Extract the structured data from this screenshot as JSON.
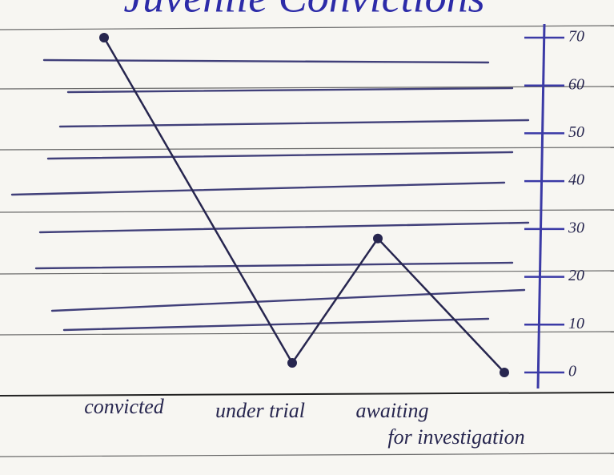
{
  "chart_data": {
    "type": "line",
    "title": "Juvenile Convictions",
    "categories": [
      "convicted",
      "under trial",
      "awaiting",
      "for investigation"
    ],
    "values": [
      70,
      2,
      28,
      0
    ],
    "color": "#27264f",
    "axis_color": "#3b3aa6",
    "ylim": [
      0,
      70
    ],
    "yticks": [
      0,
      10,
      20,
      30,
      40,
      50,
      60,
      70
    ],
    "grid": false
  }
}
